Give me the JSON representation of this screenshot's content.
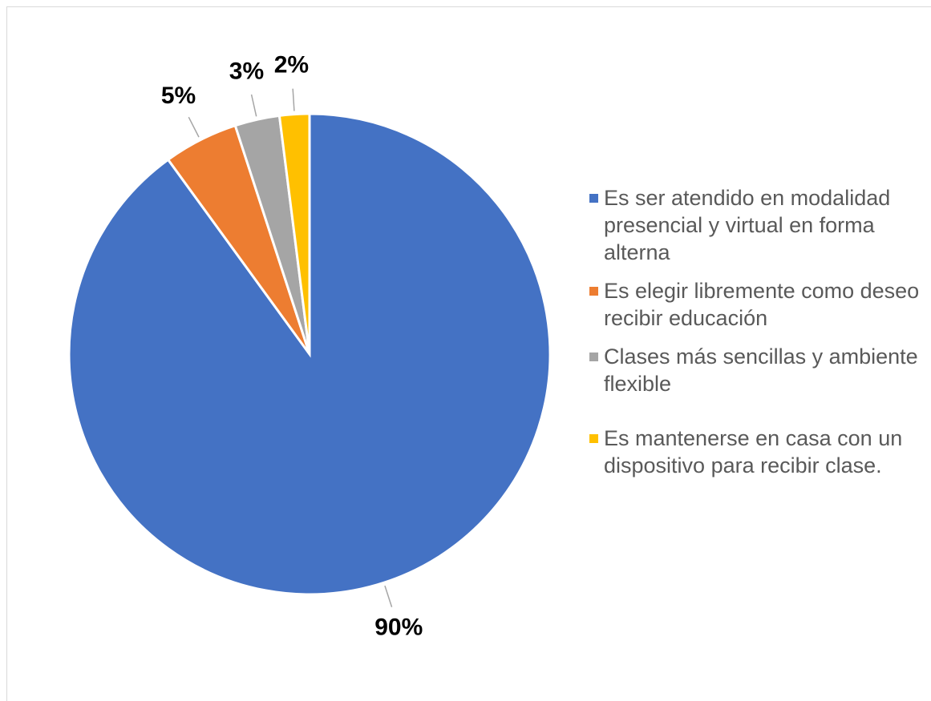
{
  "chart_data": {
    "type": "pie",
    "categories": [
      "Es ser atendido en modalidad presencial y virtual en forma alterna",
      "Es elegir libremente como deseo recibir educación",
      "Clases más sencillas y ambiente flexible",
      "Es mantenerse en casa con un dispositivo para recibir clase."
    ],
    "values": [
      90,
      5,
      3,
      2
    ],
    "value_labels": [
      "90%",
      "5%",
      "3%",
      "2%"
    ],
    "colors": [
      "#4472c4",
      "#ed7d31",
      "#a5a5a5",
      "#ffc000"
    ],
    "legend": "right"
  }
}
